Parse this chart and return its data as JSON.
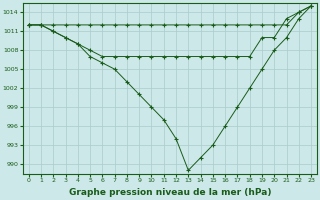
{
  "background_color": "#cce8e8",
  "grid_color": "#aacccc",
  "line_color": "#1a5c1a",
  "marker_color": "#1a5c1a",
  "xlabel": "Graphe pression niveau de la mer (hPa)",
  "xlabel_fontsize": 6.5,
  "xlim": [
    -0.5,
    23.5
  ],
  "ylim": [
    988.5,
    1015.5
  ],
  "yticks": [
    990,
    993,
    996,
    999,
    1002,
    1005,
    1008,
    1011,
    1014
  ],
  "xticks": [
    0,
    1,
    2,
    3,
    4,
    5,
    6,
    7,
    8,
    9,
    10,
    11,
    12,
    13,
    14,
    15,
    16,
    17,
    18,
    19,
    20,
    21,
    22,
    23
  ],
  "series": [
    {
      "x": [
        0,
        1,
        2,
        3,
        4,
        5,
        6,
        7,
        8,
        9,
        10,
        11,
        12,
        13,
        14,
        15,
        16,
        17,
        18,
        19,
        20,
        21,
        22,
        23
      ],
      "y": [
        1012,
        1012,
        1012,
        1012,
        1012,
        1012,
        1012,
        1012,
        1012,
        1012,
        1012,
        1012,
        1012,
        1012,
        1012,
        1012,
        1012,
        1012,
        1012,
        1012,
        1012,
        1012,
        1014,
        1015
      ]
    },
    {
      "x": [
        0,
        1,
        2,
        3,
        4,
        5,
        6,
        7,
        8,
        9,
        10,
        11,
        12,
        13,
        14,
        15,
        16,
        17,
        18,
        19,
        20,
        21,
        22,
        23
      ],
      "y": [
        1012,
        1012,
        1011,
        1010,
        1009,
        1008,
        1007,
        1007,
        1007,
        1007,
        1007,
        1007,
        1007,
        1007,
        1007,
        1007,
        1007,
        1007,
        1007,
        1010,
        1010,
        1013,
        1014,
        1015
      ]
    },
    {
      "x": [
        0,
        1,
        2,
        3,
        4,
        5,
        6,
        7,
        8,
        9,
        10,
        11,
        12,
        13,
        14,
        15,
        16,
        17,
        18,
        19,
        20,
        21,
        22,
        23
      ],
      "y": [
        1012,
        1012,
        1011,
        1010,
        1009,
        1007,
        1006,
        1005,
        1003,
        1001,
        999,
        997,
        994,
        989,
        991,
        993,
        996,
        999,
        1002,
        1005,
        1008,
        1010,
        1013,
        1015
      ]
    }
  ]
}
